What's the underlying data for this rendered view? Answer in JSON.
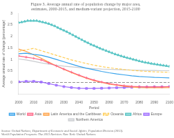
{
  "chart_data": {
    "type": "line",
    "title": "Figure 3. Average annual rate of population change by major area,\nestimates, 2000-2015, and medium-variant projection, 2015-2100",
    "x_label": "Period",
    "y_label": "Average annual rate of change (percentage)",
    "annotations": [
      "Source: United Nations, Department of Economic and Social Affairs, Population Division (2013).\nWorld Population Prospects: The 2013 Revision. New York: United Nations."
    ],
    "xlim": [
      2000,
      2100
    ],
    "xticks": [
      2000,
      2010,
      2020,
      2030,
      2040,
      2050,
      2060,
      2070,
      2080,
      2090,
      2100
    ],
    "ylim": [
      -0.5,
      3.0
    ],
    "yticks": [
      0,
      0.5,
      1,
      1.5,
      2,
      2.5,
      3
    ],
    "grid": false,
    "legend": "bottom",
    "reference_lines": [
      {
        "y": 0,
        "line_style": "dashed"
      }
    ],
    "series": [
      {
        "name": "World",
        "marker": "none",
        "line_style": "solid",
        "x": [
          2000,
          2005,
          2010,
          2015,
          2020,
          2025,
          2030,
          2035,
          2040,
          2045,
          2050,
          2055,
          2060,
          2065,
          2070,
          2075,
          2080,
          2085,
          2090,
          2095,
          2100
        ],
        "values": [
          1.25,
          1.27,
          1.22,
          1.18,
          1.1,
          1.0,
          0.9,
          0.8,
          0.7,
          0.62,
          0.55,
          0.48,
          0.42,
          0.37,
          0.33,
          0.29,
          0.26,
          0.24,
          0.22,
          0.21,
          0.2
        ]
      },
      {
        "name": "Asia",
        "marker": "plus",
        "line_style": "solid",
        "x": [
          2000,
          2005,
          2010,
          2015,
          2020,
          2025,
          2030,
          2035,
          2040,
          2045,
          2050,
          2055,
          2060,
          2065,
          2070,
          2075,
          2080,
          2085,
          2090,
          2095,
          2100
        ],
        "values": [
          1.15,
          1.1,
          1.05,
          0.98,
          0.85,
          0.72,
          0.58,
          0.45,
          0.32,
          0.2,
          0.1,
          0.02,
          -0.05,
          -0.1,
          -0.14,
          -0.17,
          -0.18,
          -0.19,
          -0.19,
          -0.19,
          -0.18
        ]
      },
      {
        "name": "Latin America and the Caribbean",
        "marker": "none",
        "line_style": "solid",
        "x": [
          2000,
          2005,
          2010,
          2015,
          2020,
          2025,
          2030,
          2035,
          2040,
          2045,
          2050,
          2055,
          2060,
          2065,
          2070,
          2075,
          2080,
          2085,
          2090,
          2095,
          2100
        ],
        "values": [
          1.45,
          1.35,
          1.2,
          1.05,
          0.88,
          0.72,
          0.57,
          0.43,
          0.3,
          0.18,
          0.08,
          0.0,
          -0.07,
          -0.12,
          -0.17,
          -0.2,
          -0.22,
          -0.23,
          -0.23,
          -0.23,
          -0.22
        ]
      },
      {
        "name": "Oceania",
        "marker": "none",
        "line_style": "dashed",
        "x": [
          2000,
          2005,
          2010,
          2015,
          2020,
          2025,
          2030,
          2035,
          2040,
          2045,
          2050,
          2055,
          2060,
          2065,
          2070,
          2075,
          2080,
          2085,
          2090,
          2095,
          2100
        ],
        "values": [
          1.35,
          1.42,
          1.48,
          1.38,
          1.28,
          1.18,
          1.08,
          0.98,
          0.9,
          0.82,
          0.75,
          0.69,
          0.64,
          0.6,
          0.56,
          0.53,
          0.5,
          0.48,
          0.46,
          0.45,
          0.44
        ]
      },
      {
        "name": "Africa",
        "marker": "triangle",
        "line_style": "solid",
        "x": [
          2000,
          2002,
          2004,
          2006,
          2008,
          2010,
          2012,
          2014,
          2016,
          2018,
          2020,
          2022,
          2024,
          2026,
          2028,
          2030,
          2032,
          2034,
          2036,
          2038,
          2040,
          2042,
          2044,
          2046,
          2048,
          2050,
          2052,
          2054,
          2056,
          2058,
          2060,
          2062,
          2064,
          2066,
          2068,
          2070,
          2072,
          2074,
          2076,
          2078,
          2080,
          2082,
          2084,
          2086,
          2088,
          2090,
          2092,
          2094,
          2096,
          2098,
          2100
        ],
        "values": [
          2.6,
          2.62,
          2.65,
          2.68,
          2.68,
          2.68,
          2.68,
          2.65,
          2.62,
          2.59,
          2.55,
          2.5,
          2.45,
          2.38,
          2.32,
          2.26,
          2.2,
          2.13,
          2.06,
          1.99,
          1.92,
          1.85,
          1.78,
          1.72,
          1.65,
          1.6,
          1.54,
          1.48,
          1.43,
          1.38,
          1.33,
          1.28,
          1.23,
          1.19,
          1.15,
          1.11,
          1.07,
          1.04,
          1.0,
          0.97,
          0.93,
          0.9,
          0.87,
          0.85,
          0.82,
          0.8,
          0.78,
          0.76,
          0.74,
          0.72,
          0.7
        ]
      },
      {
        "name": "Europe",
        "marker": "square",
        "line_style": "solid",
        "x": [
          2000,
          2005,
          2010,
          2015,
          2020,
          2025,
          2030,
          2035,
          2040,
          2045,
          2050,
          2055,
          2060,
          2065,
          2070,
          2075,
          2080,
          2085,
          2090,
          2095,
          2100
        ],
        "values": [
          0.03,
          0.05,
          0.05,
          0.02,
          -0.05,
          -0.12,
          -0.18,
          -0.22,
          -0.25,
          -0.26,
          -0.26,
          -0.25,
          -0.24,
          -0.23,
          -0.22,
          -0.21,
          -0.2,
          -0.2,
          -0.19,
          -0.19,
          -0.18
        ]
      },
      {
        "name": "Northern America",
        "marker": "none",
        "line_style": "solid",
        "x": [
          2000,
          2005,
          2010,
          2015,
          2020,
          2025,
          2030,
          2035,
          2040,
          2045,
          2050,
          2055,
          2060,
          2065,
          2070,
          2075,
          2080,
          2085,
          2090,
          2095,
          2100
        ],
        "values": [
          1.02,
          0.98,
          0.92,
          0.85,
          0.8,
          0.75,
          0.71,
          0.68,
          0.65,
          0.62,
          0.6,
          0.58,
          0.57,
          0.56,
          0.55,
          0.54,
          0.53,
          0.52,
          0.52,
          0.51,
          0.51
        ]
      }
    ]
  }
}
